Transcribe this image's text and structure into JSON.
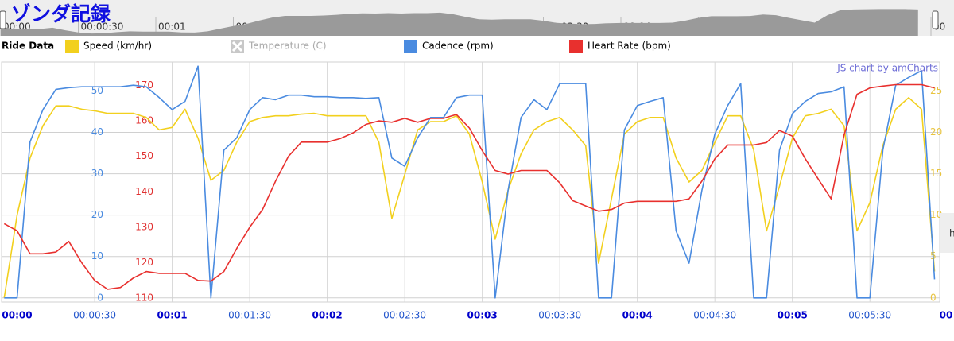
{
  "chart_data": {
    "type": "line",
    "title": "ゾンダ記録",
    "legend_title": "Ride Data",
    "credit": "JS chart by amCharts",
    "side_button": "h",
    "grid": true,
    "x": [
      -5,
      0,
      5,
      10,
      15,
      20,
      25,
      30,
      35,
      40,
      45,
      50,
      55,
      60,
      65,
      70,
      75,
      80,
      85,
      90,
      95,
      100,
      105,
      110,
      115,
      120,
      125,
      130,
      135,
      140,
      145,
      150,
      155,
      160,
      165,
      170,
      175,
      180,
      185,
      190,
      195,
      200,
      205,
      210,
      215,
      220,
      225,
      230,
      235,
      240,
      245,
      250,
      255,
      260,
      265,
      270,
      275,
      280,
      285,
      290,
      295,
      300,
      305,
      310,
      315,
      320,
      325,
      330,
      335,
      340,
      345,
      350,
      355
    ],
    "xlim": [
      -6,
      357
    ],
    "xticks": [
      {
        "value": 0,
        "label": "00:00"
      },
      {
        "value": 30,
        "label": "00:00:30"
      },
      {
        "value": 60,
        "label": "00:01"
      },
      {
        "value": 90,
        "label": "00:01:30"
      },
      {
        "value": 120,
        "label": "00:02"
      },
      {
        "value": 150,
        "label": "00:02:30"
      },
      {
        "value": 180,
        "label": "00:03"
      },
      {
        "value": 210,
        "label": "00:03:30"
      },
      {
        "value": 240,
        "label": "00:04"
      },
      {
        "value": 270,
        "label": "00:04:30"
      },
      {
        "value": 300,
        "label": "00:05"
      },
      {
        "value": 330,
        "label": "00:05:30"
      },
      {
        "value": 360,
        "label": "00"
      }
    ],
    "ylim": [
      -1,
      57
    ],
    "yticks": [
      0,
      10,
      20,
      30,
      40,
      50
    ],
    "y2lim": [
      108.9,
      176.6
    ],
    "y2ticks": [
      110,
      120,
      130,
      140,
      150,
      160,
      170
    ],
    "y3lim": [
      -0.5,
      28.5
    ],
    "y3ticks": [
      0,
      5,
      10,
      15,
      20,
      25
    ],
    "series": [
      {
        "name": "Speed (km/hr)",
        "color": "#f2d01e",
        "axis": "y3",
        "values": [
          0,
          10,
          16.9,
          20.8,
          23.2,
          23.2,
          22.8,
          22.6,
          22.3,
          22.3,
          22.3,
          21.8,
          20.3,
          20.6,
          22.8,
          19.3,
          14.2,
          15.4,
          18.8,
          21.3,
          21.8,
          22,
          22,
          22.2,
          22.3,
          22,
          22,
          22,
          22,
          18.8,
          9.6,
          14.9,
          20.3,
          21.3,
          21.3,
          22,
          19.8,
          14,
          7.1,
          13,
          17.4,
          20.3,
          21.3,
          21.8,
          20.3,
          18.4,
          4.2,
          12,
          19.8,
          21.3,
          21.8,
          21.8,
          16.9,
          14,
          15.4,
          18.8,
          22,
          22,
          17.9,
          8.1,
          13.5,
          19.3,
          22,
          22.3,
          22.8,
          20.8,
          8.1,
          11.5,
          18.4,
          22.8,
          24.2,
          22.8,
          3.2
        ]
      },
      {
        "name": "Temperature (C)",
        "color": "#b0b0b0",
        "hidden": true
      },
      {
        "name": "Cadence (rpm)",
        "color": "#4a8be0",
        "axis": "y",
        "values": [
          0,
          0,
          37.7,
          45.5,
          50.4,
          50.8,
          51,
          51,
          51,
          51,
          51.4,
          51,
          48.4,
          45.5,
          47.5,
          56,
          0,
          35.7,
          38.7,
          45.5,
          48.4,
          47.9,
          49,
          49,
          48.6,
          48.6,
          48.4,
          48.4,
          48.2,
          48.4,
          33.8,
          31.8,
          38.7,
          43.6,
          43.6,
          48.4,
          49,
          49,
          0,
          26,
          43.6,
          47.9,
          45.5,
          51.8,
          51.8,
          51.8,
          0,
          0,
          40.6,
          46.5,
          47.5,
          48.4,
          16.2,
          8.4,
          26,
          39.6,
          46.5,
          51.8,
          0,
          0,
          35.7,
          44.5,
          47.5,
          49.4,
          49.8,
          51,
          0,
          0,
          35.7,
          51.4,
          53.3,
          54.9,
          4.5
        ]
      },
      {
        "name": "Heart Rate (bpm)",
        "color": "#e8302e",
        "axis": "y2",
        "values": [
          131,
          129,
          122.5,
          122.5,
          123,
          126,
          120,
          115,
          112.5,
          113,
          115.7,
          117.5,
          117,
          117,
          117,
          115,
          114.8,
          117.5,
          124,
          130,
          135,
          143,
          150,
          154,
          154,
          154,
          155,
          156.6,
          159,
          160,
          159.6,
          160.7,
          159.6,
          160.7,
          160.7,
          161.8,
          158,
          151.6,
          146,
          145,
          146,
          146,
          146,
          142.5,
          137.5,
          136,
          134.5,
          135,
          136.8,
          137.3,
          137.3,
          137.3,
          137.3,
          138,
          143,
          149.3,
          153.2,
          153.2,
          153.2,
          153.9,
          157.3,
          155.7,
          149.3,
          143.6,
          138,
          156,
          167.5,
          169.3,
          169.8,
          170.2,
          170.2,
          170.2,
          169.3
        ]
      }
    ]
  }
}
